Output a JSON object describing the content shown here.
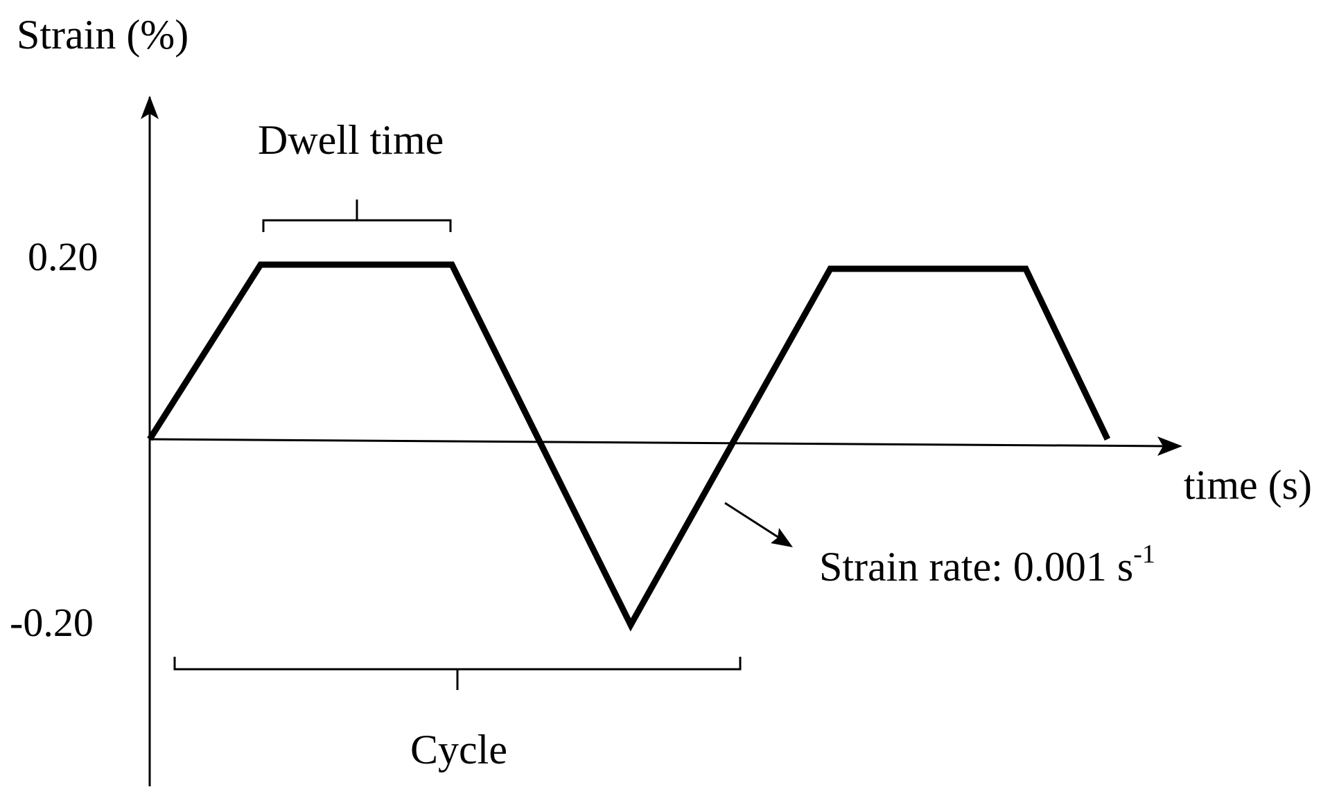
{
  "axes": {
    "y_label": "Strain (%)",
    "x_label": "time (s)",
    "y_tick_top": "0.20",
    "y_tick_bottom": "-0.20"
  },
  "annotations": {
    "dwell": "Dwell time",
    "cycle": "Cycle",
    "rate_main": "Strain rate: 0.001 s",
    "rate_exp": "-1"
  },
  "colors": {
    "line": "#000000",
    "background": "#ffffff"
  }
}
